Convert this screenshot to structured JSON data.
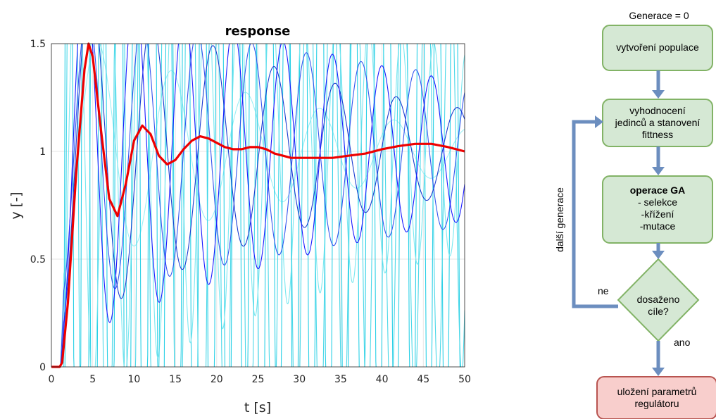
{
  "chart_data": {
    "type": "line",
    "title": "response",
    "xlabel": "t [s]",
    "ylabel": "y [-]",
    "xlim": [
      0,
      50
    ],
    "ylim": [
      0,
      1.5
    ],
    "xticks": [
      "0",
      "5",
      "10",
      "15",
      "20",
      "25",
      "30",
      "35",
      "40",
      "45",
      "50"
    ],
    "yticks": [
      "0",
      "0.5",
      "1",
      "1.5"
    ],
    "grid": true,
    "background_responses": [
      {
        "color": "#1a1aff",
        "delay": 1.1,
        "freq": 1.05,
        "zeta": 0.02,
        "amp": 0.9
      },
      {
        "color": "#1a3cd0",
        "delay": 1.1,
        "freq": 0.85,
        "zeta": 0.035,
        "amp": 0.85
      },
      {
        "color": "#3355ee",
        "delay": 1.1,
        "freq": 0.95,
        "zeta": 0.015,
        "amp": 0.7
      },
      {
        "color": "#4bd8e8",
        "delay": 1.1,
        "freq": 2.2,
        "zeta": 0.01,
        "amp": 3.0
      },
      {
        "color": "#7ae8f0",
        "delay": 1.1,
        "freq": 1.6,
        "zeta": 0.012,
        "amp": 1.2
      },
      {
        "color": "#2ad0e6",
        "delay": 1.1,
        "freq": 3.1,
        "zeta": 0.005,
        "amp": 4.0
      },
      {
        "color": "#9df0f5",
        "delay": 1.1,
        "freq": 0.7,
        "zeta": 0.05,
        "amp": 0.6
      }
    ],
    "best_response": {
      "color": "#ee0000",
      "points": [
        [
          0,
          0
        ],
        [
          1,
          0
        ],
        [
          1.3,
          0.02
        ],
        [
          2,
          0.3
        ],
        [
          3,
          0.9
        ],
        [
          4,
          1.38
        ],
        [
          4.5,
          1.5
        ],
        [
          5,
          1.44
        ],
        [
          6,
          1.1
        ],
        [
          7,
          0.78
        ],
        [
          8,
          0.7
        ],
        [
          9,
          0.85
        ],
        [
          10,
          1.05
        ],
        [
          11,
          1.12
        ],
        [
          12,
          1.08
        ],
        [
          13,
          0.98
        ],
        [
          14,
          0.94
        ],
        [
          15,
          0.96
        ],
        [
          16,
          1.01
        ],
        [
          17,
          1.05
        ],
        [
          18,
          1.07
        ],
        [
          19,
          1.06
        ],
        [
          20,
          1.04
        ],
        [
          21,
          1.02
        ],
        [
          22,
          1.01
        ],
        [
          23,
          1.01
        ],
        [
          24,
          1.02
        ],
        [
          25,
          1.02
        ],
        [
          26,
          1.01
        ],
        [
          27,
          0.99
        ],
        [
          28,
          0.98
        ],
        [
          29,
          0.97
        ],
        [
          30,
          0.97
        ],
        [
          32,
          0.97
        ],
        [
          34,
          0.97
        ],
        [
          36,
          0.98
        ],
        [
          38,
          0.99
        ],
        [
          40,
          1.01
        ],
        [
          42,
          1.025
        ],
        [
          44,
          1.035
        ],
        [
          46,
          1.035
        ],
        [
          48,
          1.02
        ],
        [
          50,
          1.0
        ]
      ]
    }
  },
  "flowchart": {
    "start_label": "Generace = 0",
    "nodes": {
      "create": "vytvoření populace",
      "eval": [
        "vyhodnocení",
        "jedinců a stanovení",
        "fittness"
      ],
      "ga_title": "operace GA",
      "ga_items": [
        "- selekce",
        "-křížení",
        "-mutace"
      ],
      "decision": [
        "dosaženo",
        "cíle?"
      ],
      "save": [
        "uložení parametrů",
        "regulátoru"
      ]
    },
    "labels": {
      "no": "ne",
      "yes": "ano",
      "loop": "další generace"
    },
    "colors": {
      "green_fill": "#d5e8d4",
      "green_stroke": "#82b366",
      "red_fill": "#f8cecc",
      "red_stroke": "#b85450",
      "arrow": "#6c8ebf"
    }
  }
}
